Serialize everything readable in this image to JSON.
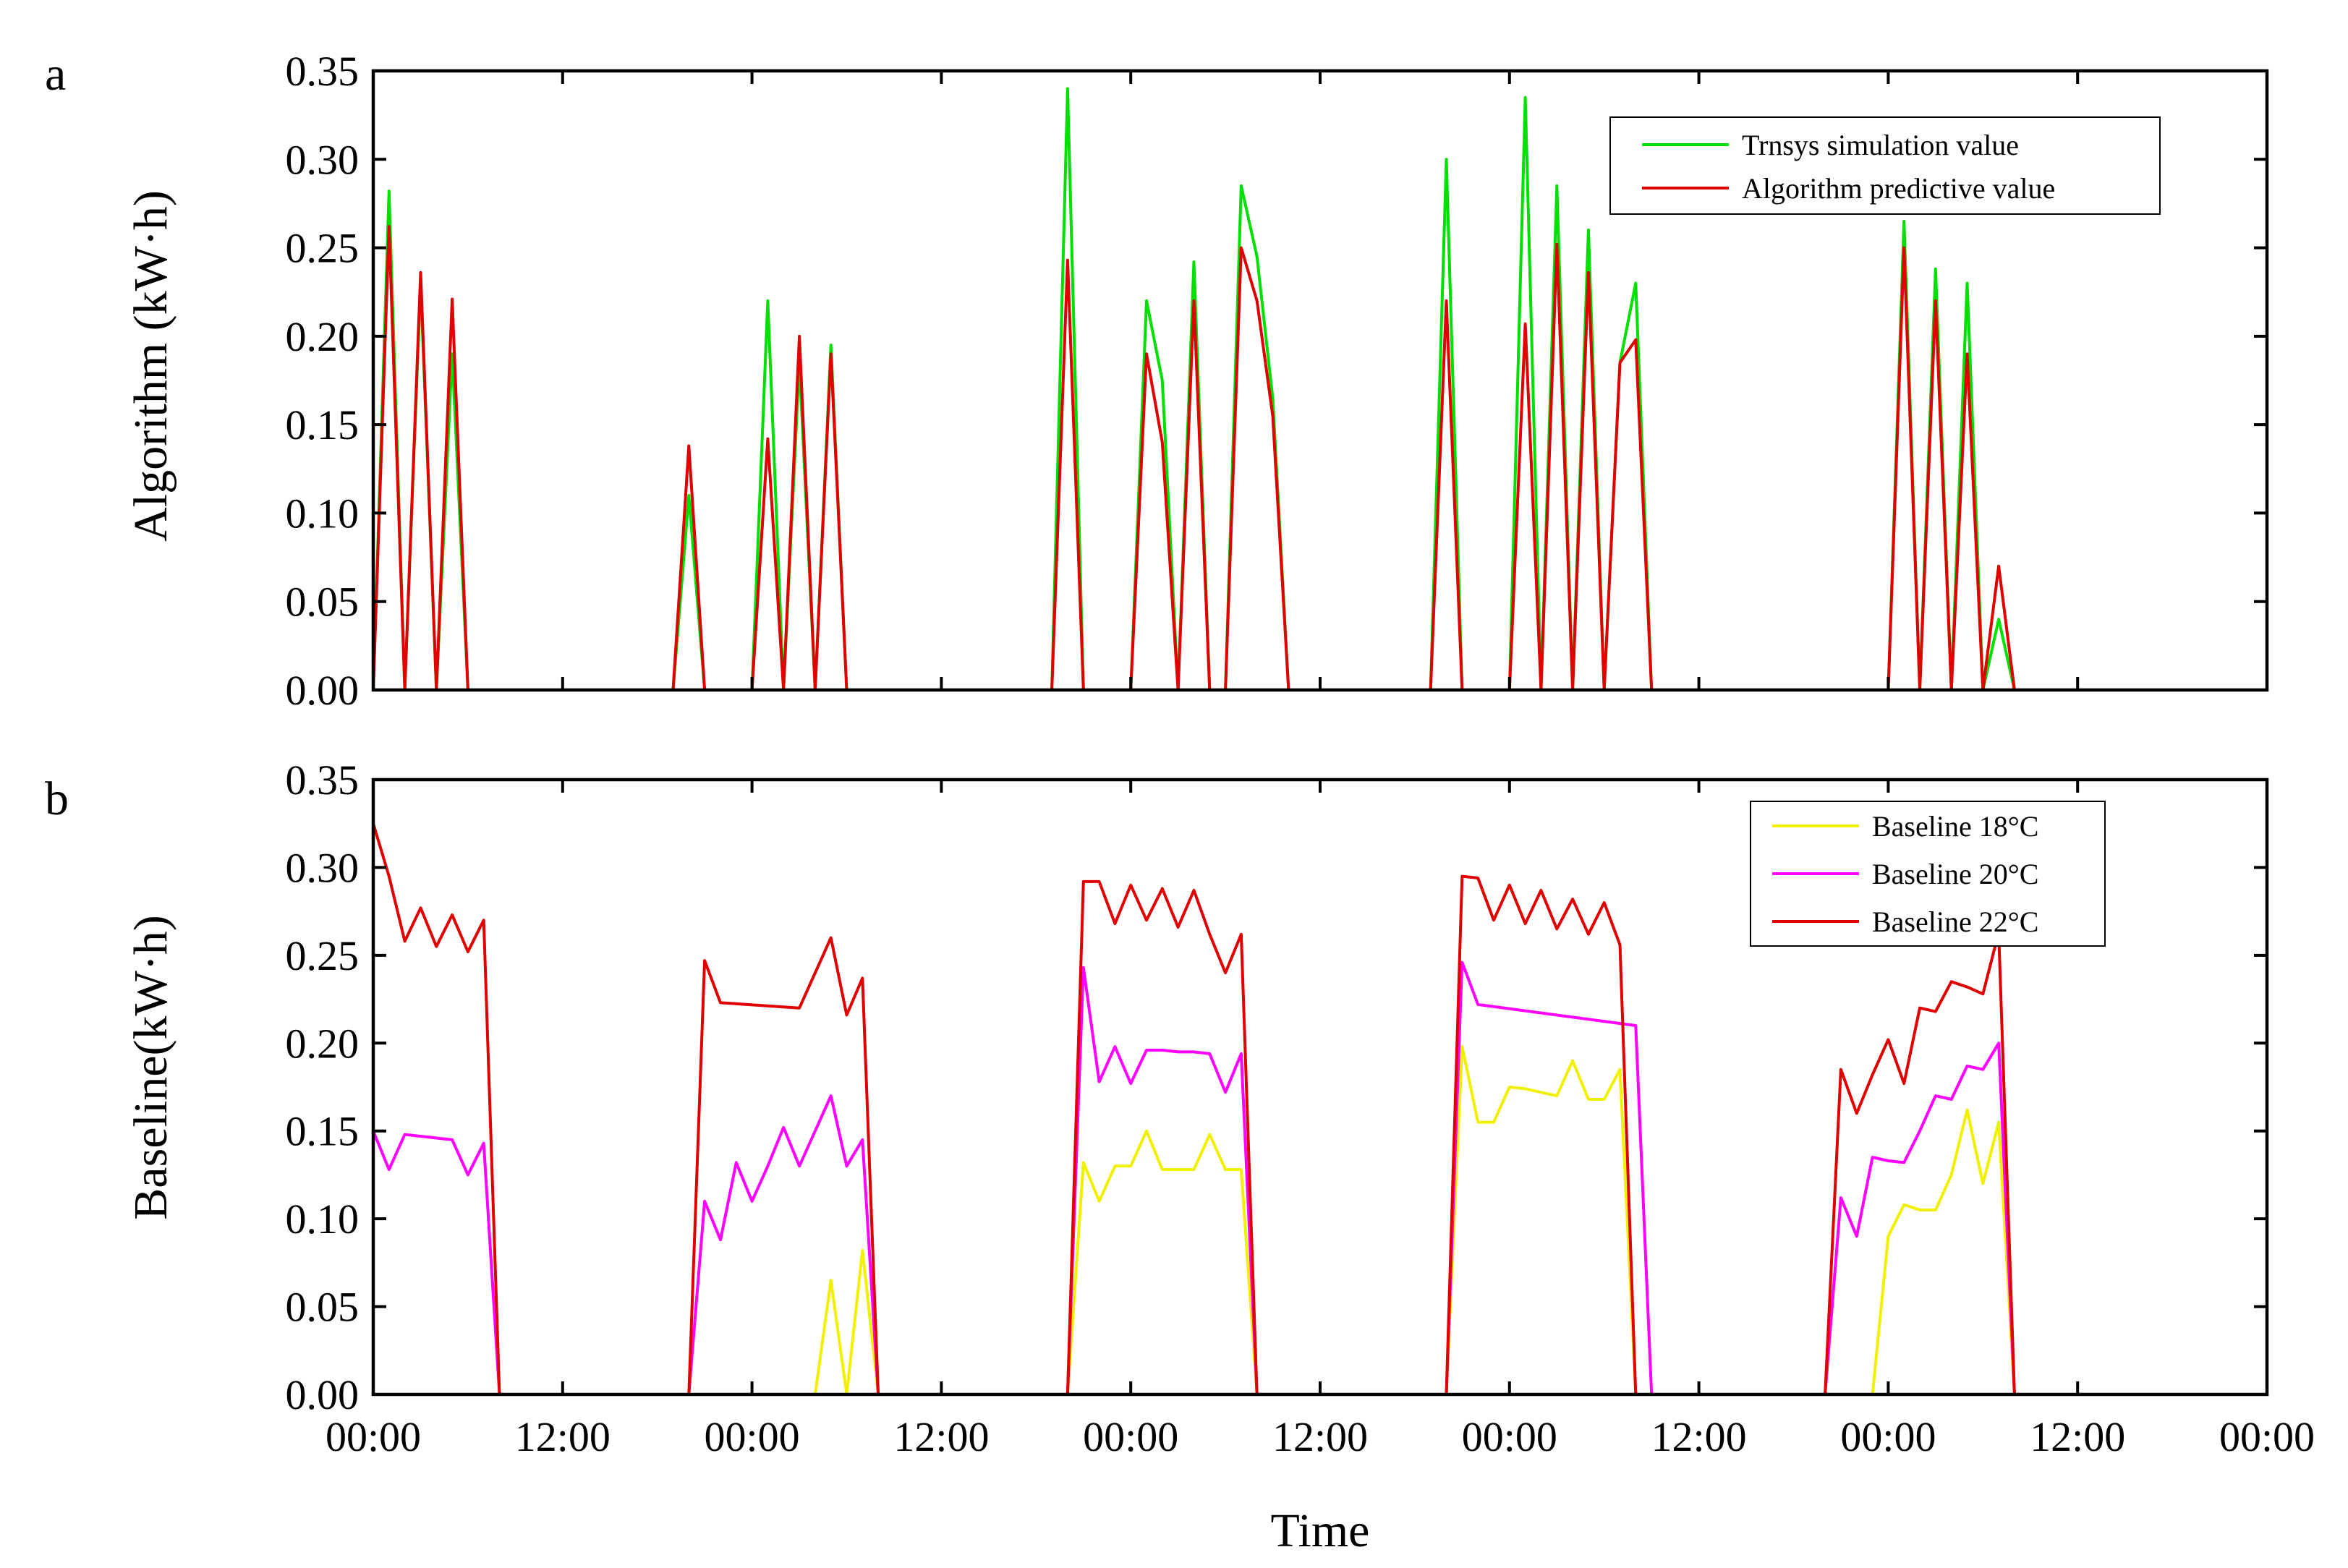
{
  "colors": {
    "trnsys": "#00e000",
    "algorithm": "#e00000",
    "baseline18": "#f0f000",
    "baseline20": "#ff00ff",
    "baseline22": "#e00000"
  },
  "chart_data": [
    {
      "type": "line",
      "panel_label": "a",
      "ylabel": "Algorithm (kW·h)",
      "xlabel": "",
      "xlim": [
        0,
        120
      ],
      "ylim": [
        0,
        0.35
      ],
      "yticks": [
        "0.00",
        "0.05",
        "0.10",
        "0.15",
        "0.20",
        "0.25",
        "0.30",
        "0.35"
      ],
      "xtick_positions": [
        0,
        12,
        24,
        36,
        48,
        60,
        72,
        84,
        96,
        108,
        120
      ],
      "grid": false,
      "legend_position": "top-right",
      "series": [
        {
          "name": "Trnsys simulation value",
          "color_key": "trnsys",
          "x": [
            0,
            1,
            2,
            3,
            4,
            5,
            6,
            19,
            20,
            21,
            24,
            25,
            26,
            27,
            28,
            29,
            30,
            43,
            44,
            45,
            48,
            49,
            50,
            51,
            52,
            53,
            54,
            55,
            56,
            57,
            58,
            67,
            68,
            69,
            72,
            73,
            74,
            75,
            76,
            77,
            78,
            79,
            80,
            81,
            82,
            96,
            97,
            98,
            99,
            100,
            101,
            102,
            103,
            104,
            105,
            120
          ],
          "y": [
            0,
            0.282,
            0,
            0.23,
            0,
            0.19,
            0,
            0,
            0.11,
            0,
            0,
            0.22,
            0,
            0.185,
            0,
            0.195,
            0,
            0,
            0.34,
            0,
            0,
            0.22,
            0.175,
            0,
            0.242,
            0,
            0,
            0.285,
            0.245,
            0.165,
            0,
            0,
            0.3,
            0,
            0,
            0.335,
            0,
            0.285,
            0,
            0.26,
            0,
            0.185,
            0.23,
            0,
            0,
            0,
            0.265,
            0,
            0.238,
            0,
            0.23,
            0,
            0.04,
            0,
            0,
            0
          ]
        },
        {
          "name": "Algorithm predictive value",
          "color_key": "algorithm",
          "x": [
            0,
            1,
            2,
            3,
            4,
            5,
            6,
            19,
            20,
            21,
            24,
            25,
            26,
            27,
            28,
            29,
            30,
            43,
            44,
            45,
            48,
            49,
            50,
            51,
            52,
            53,
            54,
            55,
            56,
            57,
            58,
            67,
            68,
            69,
            72,
            73,
            74,
            75,
            76,
            77,
            78,
            79,
            80,
            81,
            82,
            96,
            97,
            98,
            99,
            100,
            101,
            102,
            103,
            104,
            105,
            120
          ],
          "y": [
            0,
            0.262,
            0,
            0.236,
            0,
            0.221,
            0,
            0,
            0.138,
            0,
            0,
            0.142,
            0,
            0.2,
            0,
            0.19,
            0,
            0,
            0.243,
            0,
            0,
            0.19,
            0.14,
            0,
            0.22,
            0,
            0,
            0.25,
            0.22,
            0.155,
            0,
            0,
            0.22,
            0,
            0,
            0.207,
            0,
            0.252,
            0,
            0.236,
            0,
            0.185,
            0.198,
            0,
            0,
            0,
            0.25,
            0,
            0.22,
            0,
            0.19,
            0,
            0.07,
            0,
            0,
            0
          ]
        }
      ]
    },
    {
      "type": "line",
      "panel_label": "b",
      "ylabel": "Baseline(kW·h)",
      "xlabel": "Time",
      "xlim": [
        0,
        120
      ],
      "ylim": [
        0,
        0.35
      ],
      "yticks": [
        "0.00",
        "0.05",
        "0.10",
        "0.15",
        "0.20",
        "0.25",
        "0.30",
        "0.35"
      ],
      "xtick_positions": [
        0,
        12,
        24,
        36,
        48,
        60,
        72,
        84,
        96,
        108,
        120
      ],
      "xticks": [
        "00:00",
        "12:00",
        "00:00",
        "12:00",
        "00:00",
        "12:00",
        "00:00",
        "12:00",
        "00:00",
        "12:00",
        "00:00"
      ],
      "grid": false,
      "legend_position": "top-right",
      "series": [
        {
          "name": "Baseline 18°C",
          "color_key": "baseline18",
          "x": [
            0,
            28,
            29,
            30,
            31,
            32,
            33,
            44,
            45,
            46,
            47,
            48,
            49,
            50,
            51,
            52,
            53,
            54,
            55,
            56,
            57,
            58,
            68,
            69,
            70,
            71,
            72,
            73,
            74,
            75,
            76,
            77,
            78,
            79,
            80,
            81,
            82,
            95,
            96,
            97,
            98,
            99,
            100,
            101,
            102,
            103,
            104,
            105,
            120
          ],
          "y": [
            0,
            0,
            0.065,
            0,
            0.082,
            0,
            0,
            0,
            0.132,
            0.11,
            0.13,
            0.13,
            0.15,
            0.128,
            0.128,
            0.128,
            0.148,
            0.128,
            0.128,
            0,
            0,
            0,
            0,
            0.198,
            0.155,
            0.155,
            0.175,
            0.174,
            0.172,
            0.17,
            0.19,
            0.168,
            0.168,
            0.185,
            0,
            0,
            0,
            0,
            0.09,
            0.108,
            0.105,
            0.105,
            0.125,
            0.162,
            0.12,
            0.155,
            0,
            0,
            0
          ]
        },
        {
          "name": "Baseline 20°C",
          "color_key": "baseline20",
          "x": [
            0,
            1,
            2,
            5,
            6,
            7,
            8,
            20,
            21,
            22,
            23,
            24,
            25,
            26,
            27,
            28,
            29,
            30,
            31,
            32,
            44,
            45,
            46,
            47,
            48,
            49,
            50,
            51,
            52,
            53,
            54,
            55,
            56,
            57,
            68,
            69,
            70,
            80,
            81,
            92,
            93,
            94,
            95,
            96,
            97,
            98,
            99,
            100,
            101,
            102,
            103,
            104,
            105,
            120
          ],
          "y": [
            0.15,
            0.128,
            0.148,
            0.145,
            0.125,
            0.143,
            0,
            0,
            0.11,
            0.088,
            0.132,
            0.11,
            0.13,
            0.152,
            0.13,
            0.15,
            0.17,
            0.13,
            0.145,
            0,
            0,
            0.243,
            0.178,
            0.198,
            0.177,
            0.196,
            0.196,
            0.195,
            0.195,
            0.194,
            0.172,
            0.194,
            0,
            0,
            0,
            0.246,
            0.222,
            0.21,
            0,
            0,
            0.112,
            0.09,
            0.135,
            0.133,
            0.132,
            0.15,
            0.17,
            0.168,
            0.187,
            0.185,
            0.2,
            0,
            0,
            0
          ]
        },
        {
          "name": "Baseline 22°C",
          "color_key": "baseline22",
          "x": [
            0,
            1,
            2,
            3,
            4,
            5,
            6,
            7,
            8,
            20,
            21,
            22,
            27,
            29,
            30,
            31,
            32,
            44,
            45,
            46,
            47,
            48,
            49,
            50,
            51,
            52,
            53,
            54,
            55,
            56,
            57,
            68,
            69,
            70,
            71,
            72,
            73,
            74,
            75,
            76,
            77,
            78,
            79,
            80,
            81,
            92,
            93,
            94,
            95,
            96,
            97,
            98,
            99,
            100,
            101,
            102,
            103,
            104,
            105,
            120
          ],
          "y": [
            0.325,
            0.295,
            0.258,
            0.277,
            0.255,
            0.273,
            0.252,
            0.27,
            0,
            0,
            0.247,
            0.223,
            0.22,
            0.26,
            0.216,
            0.237,
            0,
            0,
            0.292,
            0.292,
            0.268,
            0.29,
            0.27,
            0.288,
            0.266,
            0.287,
            0.262,
            0.24,
            0.262,
            0,
            0,
            0,
            0.295,
            0.294,
            0.27,
            0.29,
            0.268,
            0.287,
            0.265,
            0.282,
            0.262,
            0.28,
            0.256,
            0,
            0,
            0,
            0.185,
            0.16,
            0.182,
            0.202,
            0.177,
            0.22,
            0.218,
            0.235,
            0.232,
            0.228,
            0.263,
            0,
            0,
            0
          ]
        }
      ]
    }
  ]
}
